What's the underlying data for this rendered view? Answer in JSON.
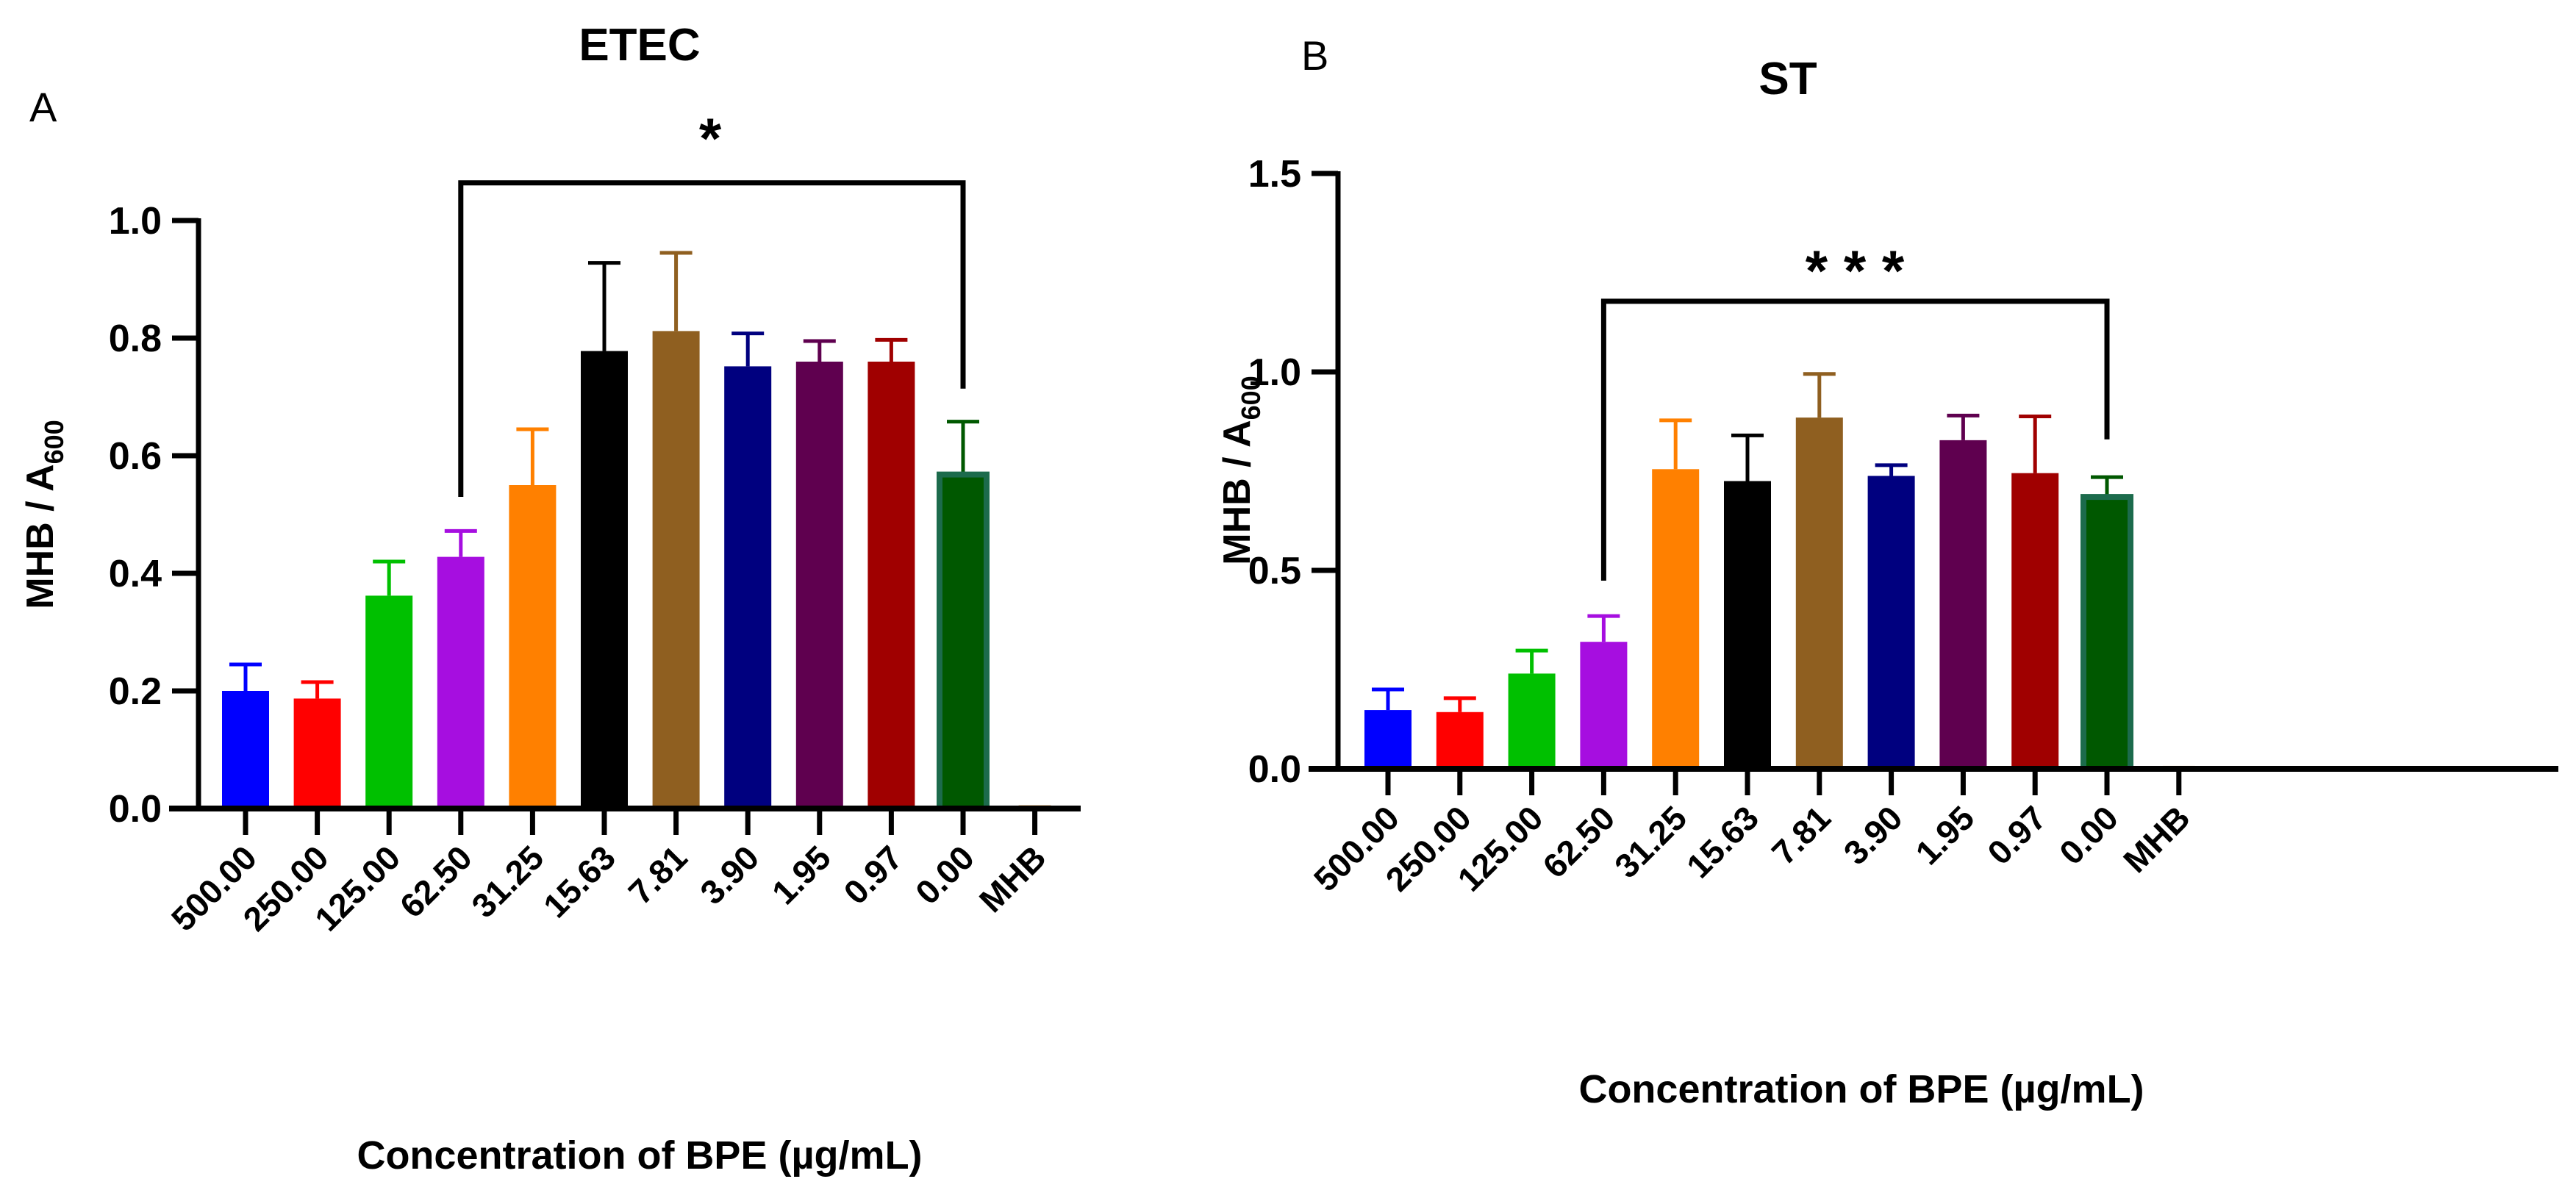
{
  "chart_data": [
    {
      "type": "bar",
      "panel_label": "A",
      "title": "ETEC",
      "xlabel": "Concentration of BPE (µg/mL)",
      "ylabel_main": "MHB / A",
      "ylabel_sub": "600",
      "ylim": [
        0,
        1.0
      ],
      "yticks": [
        "0.0",
        "0.2",
        "0.4",
        "0.6",
        "0.8",
        "1.0"
      ],
      "categories": [
        "500.00",
        "250.00",
        "125.00",
        "62.50",
        "31.25",
        "15.63",
        "7.81",
        "3.90",
        "1.95",
        "0.97",
        "0.00",
        "MHB"
      ],
      "values": [
        0.2,
        0.187,
        0.362,
        0.428,
        0.55,
        0.778,
        0.812,
        0.752,
        0.76,
        0.76,
        0.568,
        0.003
      ],
      "error_upper": [
        0.245,
        0.215,
        0.42,
        0.472,
        0.645,
        0.928,
        0.945,
        0.808,
        0.795,
        0.797,
        0.658,
        0.003
      ],
      "colors": [
        "#0000ff",
        "#ff0000",
        "#00c000",
        "#a60ee0",
        "#ff8000",
        "#000000",
        "#8f5f20",
        "#00007f",
        "#5f004f",
        "#a00000",
        "#005800",
        "#e8c8a0"
      ],
      "significance": {
        "from": "62.50",
        "to": "0.00",
        "label": "*"
      }
    },
    {
      "type": "bar",
      "panel_label": "B",
      "title": "ST",
      "xlabel": "Concentration of BPE (µg/mL)",
      "ylabel_main": "MHB / A",
      "ylabel_sub": "600",
      "ylim": [
        0,
        1.5
      ],
      "yticks": [
        "0.0",
        "0.5",
        "1.0",
        "1.5"
      ],
      "categories": [
        "500.00",
        "250.00",
        "125.00",
        "62.50",
        "31.25",
        "15.63",
        "7.81",
        "3.90",
        "1.95",
        "0.97",
        "0.00",
        "MHB"
      ],
      "values": [
        0.148,
        0.143,
        0.24,
        0.32,
        0.755,
        0.725,
        0.885,
        0.738,
        0.828,
        0.745,
        0.685,
        0.003
      ],
      "error_upper": [
        0.2,
        0.178,
        0.298,
        0.385,
        0.878,
        0.84,
        0.995,
        0.765,
        0.89,
        0.888,
        0.735,
        0.003
      ],
      "colors": [
        "#0000ff",
        "#ff0000",
        "#00c000",
        "#a60ee0",
        "#ff8000",
        "#000000",
        "#8f5f20",
        "#00007f",
        "#5f004f",
        "#a00000",
        "#005800",
        "#e8c8a0"
      ],
      "significance": {
        "from": "62.50",
        "to": "0.00",
        "label": "* * *"
      }
    }
  ]
}
